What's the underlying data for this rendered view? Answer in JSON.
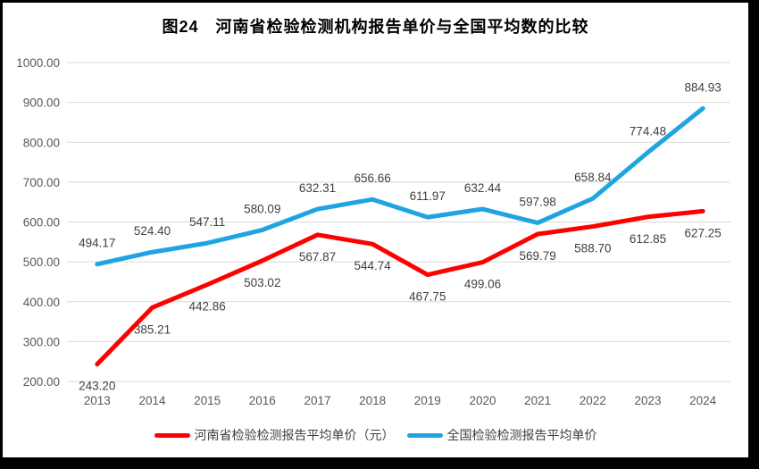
{
  "chart_data": {
    "type": "line",
    "title": "图24　河南省检验检测机构报告单价与全国平均数的比较",
    "categories": [
      "2013",
      "2014",
      "2015",
      "2016",
      "2017",
      "2018",
      "2019",
      "2020",
      "2021",
      "2022",
      "2023",
      "2024"
    ],
    "series": [
      {
        "name": "河南省检验检测报告平均单价（元）",
        "color": "#FF0000",
        "label_position": "below",
        "values": [
          243.2,
          385.21,
          442.86,
          503.02,
          567.87,
          544.74,
          467.75,
          499.06,
          569.79,
          588.7,
          612.85,
          627.25
        ]
      },
      {
        "name": "全国检验检测报告平均单价",
        "color": "#1EA5E1",
        "label_position": "above",
        "values": [
          494.17,
          524.4,
          547.11,
          580.09,
          632.31,
          656.66,
          611.97,
          632.44,
          597.98,
          658.84,
          774.48,
          884.93
        ]
      }
    ],
    "ylim": [
      200,
      1000
    ],
    "ytick_step": 100,
    "ytick_format_decimals": 2,
    "grid": true,
    "legend_position": "bottom",
    "colors": {
      "gridline": "#D9D9D9",
      "axis_text": "#595959",
      "data_label": "#404040",
      "title_text": "#000000",
      "frame": "#000000",
      "background": "#FFFFFF"
    }
  }
}
